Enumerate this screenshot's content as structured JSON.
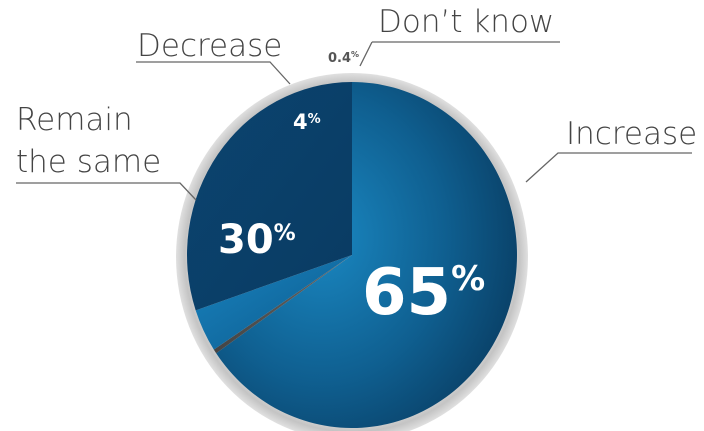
{
  "chart_data": {
    "type": "pie",
    "title": "",
    "slices": [
      {
        "label": "Increase",
        "value": 65,
        "display": "65",
        "color": "#0f5f90"
      },
      {
        "label": "Don’t know",
        "value": 0.4,
        "display": "0.4",
        "color": "#555555"
      },
      {
        "label": "Decrease",
        "value": 4,
        "display": "4",
        "color": "#1577ad"
      },
      {
        "label": "Remain the same",
        "label_lines": [
          "Remain",
          "the same"
        ],
        "value": 30,
        "display": "30",
        "color": "#0c4f7a"
      }
    ],
    "percent_sign": "%",
    "ring_color": "#cfcfcf",
    "start_angle_deg": 0,
    "direction": "clockwise"
  }
}
